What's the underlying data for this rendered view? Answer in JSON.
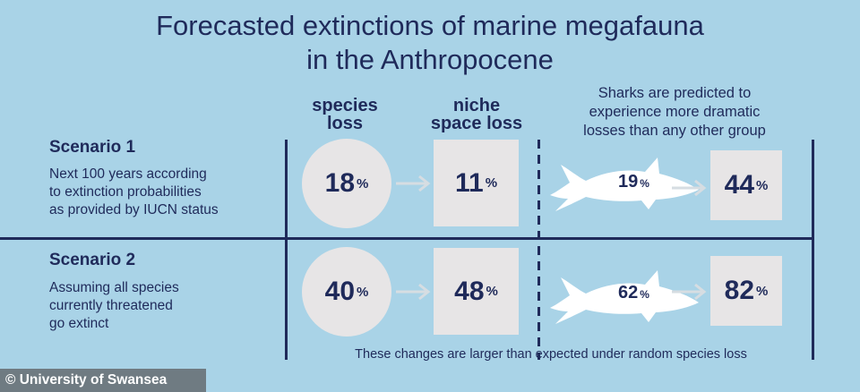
{
  "title": {
    "line1": "Forecasted extinctions of marine megafauna",
    "line2": "in the Anthropocene"
  },
  "headers": {
    "species_loss": [
      "species",
      "loss"
    ],
    "niche_space_loss": [
      "niche",
      "space loss"
    ],
    "sharks_note": [
      "Sharks are predicted to",
      "experience more dramatic",
      "losses than any other group"
    ]
  },
  "scenarios": [
    {
      "title": "Scenario 1",
      "description": [
        "Next 100 years according",
        "to extinction probabilities",
        "as provided by IUCN status"
      ],
      "species_loss": "18",
      "niche_space_loss": "11",
      "shark_species_loss": "19",
      "shark_niche_space_loss": "44"
    },
    {
      "title": "Scenario 2",
      "description": [
        "Assuming all species",
        "currently threatened",
        "go extinct"
      ],
      "species_loss": "40",
      "niche_space_loss": "48",
      "shark_species_loss": "62",
      "shark_niche_space_loss": "82"
    }
  ],
  "percent_sign": "%",
  "footer_note": "These changes are larger than expected under random species loss",
  "credit": "© University of Swansea",
  "colors": {
    "background": "#a9d3e7",
    "navy": "#1f2a5a",
    "shape_fill": "#e7e5e6",
    "arrow": "#d6dde2"
  }
}
